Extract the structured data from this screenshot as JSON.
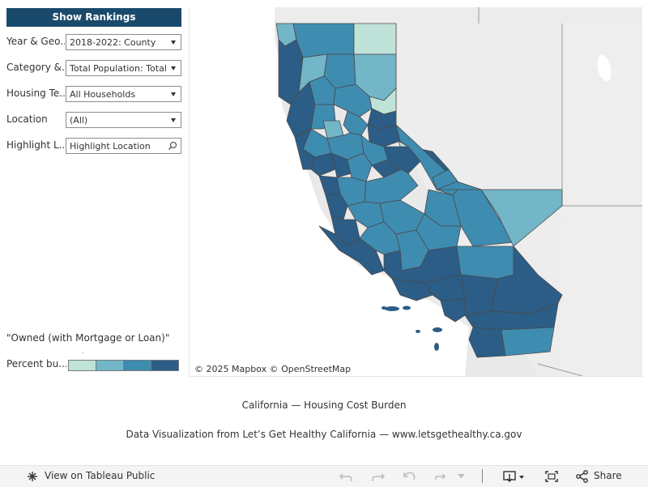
{
  "sidebar": {
    "show_rankings_label": "Show Rankings",
    "filters": [
      {
        "label": "Year & Geo...",
        "value": "2018-2022: County"
      },
      {
        "label": "Category &...",
        "value": "Total Population: Total"
      },
      {
        "label": "Housing Te...",
        "value": "All Households"
      },
      {
        "label": "Location",
        "value": "(All)"
      },
      {
        "label": "Highlight L...",
        "placeholder": "Highlight Location"
      }
    ],
    "legend": {
      "title": "\"Owned (with Mortgage or Loan)\"",
      "dot": "·",
      "label": "Percent bu...",
      "colors": [
        "#bfe3d8",
        "#72b6c8",
        "#3f8cb1",
        "#2b5d86"
      ]
    }
  },
  "map": {
    "attribution_mapbox": "© 2025 Mapbox",
    "attribution_osm": "© OpenStreetMap",
    "colors": {
      "level1": "#bfe3d8",
      "level2": "#72b6c8",
      "level3": "#3f8cb1",
      "level4": "#2b5d86",
      "basemap": "#ececec",
      "border": "#4a4a4a"
    }
  },
  "captions": {
    "title": "California — Housing Cost Burden",
    "source": "Data Visualization from Let’s Get Healthy California — www.letsgethealthy.ca.gov"
  },
  "toolbar": {
    "view_on_label": "View on Tableau Public",
    "share_label": "Share",
    "icons": [
      "tableau-logo-icon",
      "undo-icon",
      "redo-icon",
      "revert-icon",
      "refresh-icon",
      "dropdown-icon",
      "download-icon",
      "fullscreen-icon",
      "share-icon"
    ]
  }
}
